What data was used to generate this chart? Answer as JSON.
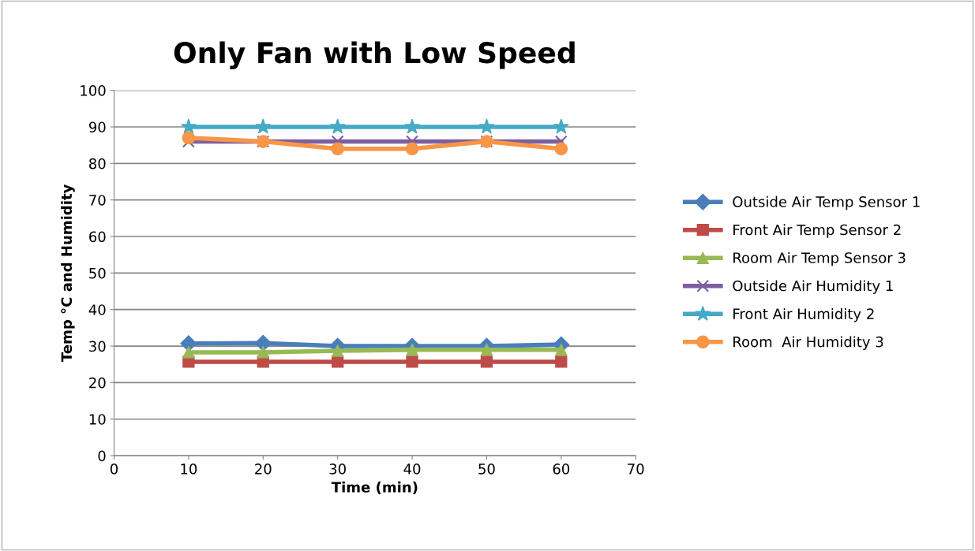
{
  "chart_data": {
    "type": "line",
    "title": "Only Fan with Low Speed",
    "xlabel": "Time (min)",
    "ylabel": "Temp °C and Humidity",
    "x": [
      10,
      20,
      30,
      40,
      50,
      60
    ],
    "series": [
      {
        "name": "Outside Air Temp Sensor 1",
        "color": "#4a7ebb",
        "marker": "diamond",
        "values": [
          30.7,
          30.8,
          30.0,
          30.0,
          30.0,
          30.4
        ]
      },
      {
        "name": "Front Air Temp Sensor 2",
        "color": "#be4b48",
        "marker": "square",
        "values": [
          25.7,
          25.7,
          25.7,
          25.7,
          25.7,
          25.7
        ]
      },
      {
        "name": "Room Air Temp Sensor 3",
        "color": "#98b954",
        "marker": "triangle",
        "values": [
          28.3,
          28.3,
          28.7,
          29.0,
          29.0,
          29.0
        ]
      },
      {
        "name": "Outside Air Humidity 1",
        "color": "#7d5fa0",
        "marker": "cross",
        "values": [
          86,
          86,
          86,
          86,
          86,
          86
        ]
      },
      {
        "name": "Front Air Humidity 2",
        "color": "#46aac5",
        "marker": "star",
        "values": [
          90,
          90,
          90,
          90,
          90,
          90
        ]
      },
      {
        "name": "Room  Air Humidity 3",
        "color": "#f79646",
        "marker": "circle",
        "values": [
          87,
          86,
          84,
          84,
          86,
          84
        ]
      }
    ],
    "xlim": [
      0,
      70
    ],
    "xticks": [
      0,
      10,
      20,
      30,
      40,
      50,
      60,
      70
    ],
    "ylim": [
      0,
      100
    ],
    "yticks": [
      0,
      10,
      20,
      30,
      40,
      50,
      60,
      70,
      80,
      90,
      100
    ],
    "grid": "y",
    "legend": "right",
    "line_style": "solid"
  }
}
